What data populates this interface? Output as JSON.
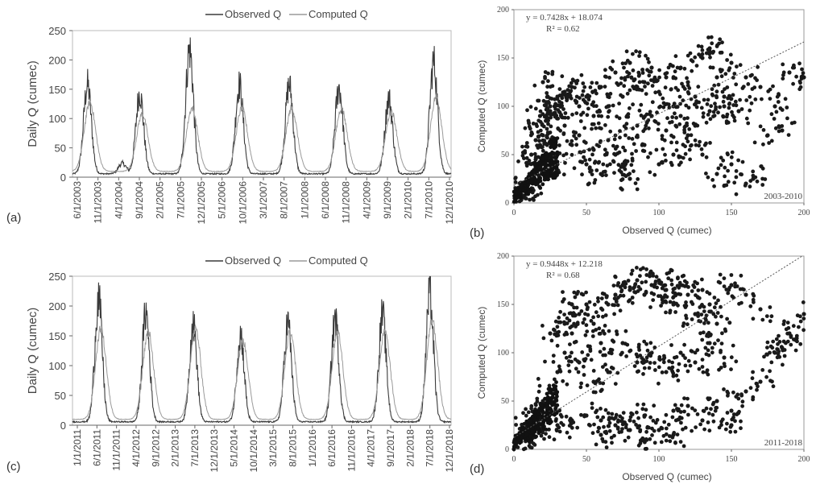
{
  "chart_data": [
    {
      "id": "a",
      "panel_label": "(a)",
      "type": "line",
      "ylabel": "Daily Q (cumec)",
      "xlabel": "",
      "ylim": [
        0,
        250
      ],
      "yticks": [
        0,
        50,
        100,
        150,
        200,
        250
      ],
      "x_tick_labels": [
        "6/1/2003",
        "11/1/2003",
        "4/1/2004",
        "9/1/2004",
        "2/1/2005",
        "7/1/2005",
        "12/1/2005",
        "5/1/2006",
        "10/1/2006",
        "3/1/2007",
        "8/1/2007",
        "1/1/2008",
        "6/1/2008",
        "11/1/2008",
        "4/1/2009",
        "9/1/2009",
        "2/1/2010",
        "7/1/2010",
        "12/1/2010"
      ],
      "legend": [
        "Observed Q",
        "Computed Q"
      ],
      "series": [
        {
          "name": "Observed Q",
          "color": "#3a3a3a",
          "peaks": [
            {
              "x": 0.3,
              "y": 165
            },
            {
              "x": 1.0,
              "y": 25
            },
            {
              "x": 1.35,
              "y": 150
            },
            {
              "x": 2.35,
              "y": 228
            },
            {
              "x": 3.35,
              "y": 165
            },
            {
              "x": 4.35,
              "y": 165
            },
            {
              "x": 5.35,
              "y": 160
            },
            {
              "x": 6.35,
              "y": 140
            },
            {
              "x": 7.25,
              "y": 205
            }
          ]
        },
        {
          "name": "Computed Q",
          "color": "#9a9a9a",
          "peaks": [
            {
              "x": 0.35,
              "y": 130
            },
            {
              "x": 1.4,
              "y": 110
            },
            {
              "x": 2.4,
              "y": 120
            },
            {
              "x": 3.4,
              "y": 120
            },
            {
              "x": 4.4,
              "y": 120
            },
            {
              "x": 5.4,
              "y": 120
            },
            {
              "x": 6.4,
              "y": 115
            },
            {
              "x": 7.3,
              "y": 140
            }
          ]
        }
      ]
    },
    {
      "id": "b",
      "panel_label": "(b)",
      "type": "scatter",
      "xlabel": "Observed Q (cumec)",
      "ylabel": "Computed Q (cumec)",
      "xlim": [
        0,
        200
      ],
      "ylim": [
        0,
        200
      ],
      "xticks": [
        0,
        50,
        100,
        150,
        200
      ],
      "yticks": [
        0,
        50,
        100,
        150,
        200
      ],
      "equation": "y = 0.7428x + 18.074",
      "r2": "R² = 0.62",
      "slope": 0.7428,
      "intercept": 18.074,
      "period": "2003-2010",
      "sample_points": [
        [
          5,
          8
        ],
        [
          8,
          12
        ],
        [
          10,
          20
        ],
        [
          12,
          30
        ],
        [
          15,
          45
        ],
        [
          18,
          60
        ],
        [
          20,
          70
        ],
        [
          22,
          85
        ],
        [
          25,
          95
        ],
        [
          28,
          100
        ],
        [
          30,
          110
        ],
        [
          35,
          115
        ],
        [
          40,
          120
        ],
        [
          45,
          100
        ],
        [
          50,
          110
        ],
        [
          55,
          90
        ],
        [
          60,
          120
        ],
        [
          65,
          100
        ],
        [
          70,
          135
        ],
        [
          75,
          110
        ],
        [
          80,
          145
        ],
        [
          85,
          120
        ],
        [
          90,
          125
        ],
        [
          95,
          140
        ],
        [
          100,
          115
        ],
        [
          105,
          130
        ],
        [
          110,
          100
        ],
        [
          115,
          140
        ],
        [
          120,
          125
        ],
        [
          125,
          110
        ],
        [
          130,
          150
        ],
        [
          135,
          160
        ],
        [
          140,
          130
        ],
        [
          145,
          100
        ],
        [
          150,
          145
        ],
        [
          160,
          130
        ],
        [
          170,
          120
        ],
        [
          180,
          100
        ],
        [
          190,
          135
        ],
        [
          200,
          130
        ],
        [
          30,
          40
        ],
        [
          40,
          60
        ],
        [
          50,
          40
        ],
        [
          60,
          30
        ],
        [
          70,
          50
        ],
        [
          80,
          25
        ],
        [
          90,
          60
        ],
        [
          100,
          40
        ],
        [
          110,
          50
        ],
        [
          120,
          70
        ],
        [
          130,
          50
        ],
        [
          140,
          30
        ],
        [
          150,
          40
        ],
        [
          160,
          20
        ],
        [
          175,
          70
        ],
        [
          185,
          75
        ],
        [
          20,
          125
        ],
        [
          25,
          100
        ],
        [
          35,
          80
        ],
        [
          45,
          70
        ],
        [
          55,
          55
        ],
        [
          65,
          65
        ],
        [
          75,
          40
        ],
        [
          85,
          80
        ],
        [
          95,
          90
        ],
        [
          105,
          75
        ],
        [
          115,
          90
        ],
        [
          125,
          80
        ],
        [
          135,
          95
        ],
        [
          145,
          110
        ],
        [
          155,
          95
        ],
        [
          165,
          25
        ],
        [
          5,
          3
        ],
        [
          7,
          15
        ],
        [
          12,
          50
        ],
        [
          15,
          65
        ],
        [
          18,
          90
        ]
      ]
    },
    {
      "id": "c",
      "panel_label": "(c)",
      "type": "line",
      "ylabel": "Daily Q (cumec)",
      "xlabel": "",
      "ylim": [
        0,
        250
      ],
      "yticks": [
        0,
        50,
        100,
        150,
        200,
        250
      ],
      "x_tick_labels": [
        "1/1/2011",
        "6/1/2011",
        "11/1/2011",
        "4/1/2012",
        "9/1/2012",
        "2/1/2013",
        "7/1/2013",
        "12/1/2013",
        "5/1/2014",
        "10/1/2014",
        "3/1/2015",
        "8/1/2015",
        "1/1/2016",
        "6/1/2016",
        "11/1/2016",
        "4/1/2017",
        "9/1/2017",
        "2/1/2018",
        "7/1/2018",
        "12/1/2018"
      ],
      "legend": [
        "Observed Q",
        "Computed Q"
      ],
      "series": [
        {
          "name": "Observed Q",
          "color": "#3a3a3a",
          "peaks": [
            {
              "x": 0.55,
              "y": 222
            },
            {
              "x": 1.55,
              "y": 197
            },
            {
              "x": 2.55,
              "y": 178
            },
            {
              "x": 3.55,
              "y": 160
            },
            {
              "x": 4.55,
              "y": 180
            },
            {
              "x": 5.55,
              "y": 187
            },
            {
              "x": 6.55,
              "y": 193
            },
            {
              "x": 7.55,
              "y": 228
            }
          ]
        },
        {
          "name": "Computed Q",
          "color": "#9a9a9a",
          "peaks": [
            {
              "x": 0.6,
              "y": 165
            },
            {
              "x": 1.6,
              "y": 160
            },
            {
              "x": 2.6,
              "y": 165
            },
            {
              "x": 3.6,
              "y": 145
            },
            {
              "x": 4.6,
              "y": 160
            },
            {
              "x": 5.6,
              "y": 160
            },
            {
              "x": 6.6,
              "y": 160
            },
            {
              "x": 7.6,
              "y": 180
            }
          ]
        }
      ]
    },
    {
      "id": "d",
      "panel_label": "(d)",
      "type": "scatter",
      "xlabel": "Observed Q (cumec)",
      "ylabel": "Computed Q (cumec)",
      "xlim": [
        0,
        200
      ],
      "ylim": [
        0,
        200
      ],
      "xticks": [
        0,
        50,
        100,
        150,
        200
      ],
      "yticks": [
        0,
        50,
        100,
        150,
        200
      ],
      "equation": "y = 0.9448x + 12.218",
      "r2": "R² = 0.68",
      "slope": 0.9448,
      "intercept": 12.218,
      "period": "2011-2018",
      "sample_points": [
        [
          5,
          8
        ],
        [
          8,
          12
        ],
        [
          10,
          20
        ],
        [
          12,
          30
        ],
        [
          15,
          40
        ],
        [
          20,
          50
        ],
        [
          25,
          60
        ],
        [
          30,
          80
        ],
        [
          35,
          100
        ],
        [
          40,
          120
        ],
        [
          45,
          140
        ],
        [
          50,
          150
        ],
        [
          55,
          130
        ],
        [
          60,
          110
        ],
        [
          65,
          150
        ],
        [
          70,
          160
        ],
        [
          75,
          170
        ],
        [
          80,
          165
        ],
        [
          85,
          175
        ],
        [
          90,
          160
        ],
        [
          95,
          170
        ],
        [
          100,
          175
        ],
        [
          105,
          165
        ],
        [
          110,
          150
        ],
        [
          115,
          170
        ],
        [
          120,
          160
        ],
        [
          125,
          140
        ],
        [
          130,
          165
        ],
        [
          135,
          150
        ],
        [
          140,
          130
        ],
        [
          150,
          170
        ],
        [
          160,
          160
        ],
        [
          170,
          145
        ],
        [
          180,
          100
        ],
        [
          190,
          120
        ],
        [
          200,
          140
        ],
        [
          20,
          20
        ],
        [
          30,
          25
        ],
        [
          40,
          30
        ],
        [
          50,
          35
        ],
        [
          60,
          30
        ],
        [
          70,
          25
        ],
        [
          80,
          30
        ],
        [
          90,
          35
        ],
        [
          100,
          20
        ],
        [
          110,
          40
        ],
        [
          120,
          45
        ],
        [
          130,
          30
        ],
        [
          140,
          50
        ],
        [
          150,
          40
        ],
        [
          160,
          60
        ],
        [
          170,
          70
        ],
        [
          185,
          105
        ],
        [
          195,
          115
        ],
        [
          45,
          90
        ],
        [
          55,
          70
        ],
        [
          65,
          80
        ],
        [
          75,
          110
        ],
        [
          85,
          90
        ],
        [
          95,
          100
        ],
        [
          105,
          80
        ],
        [
          115,
          100
        ],
        [
          125,
          90
        ],
        [
          135,
          110
        ],
        [
          145,
          95
        ],
        [
          150,
          25
        ],
        [
          60,
          15
        ],
        [
          80,
          20
        ],
        [
          90,
          10
        ],
        [
          110,
          15
        ],
        [
          25,
          120
        ],
        [
          35,
          130
        ],
        [
          40,
          150
        ]
      ]
    }
  ]
}
